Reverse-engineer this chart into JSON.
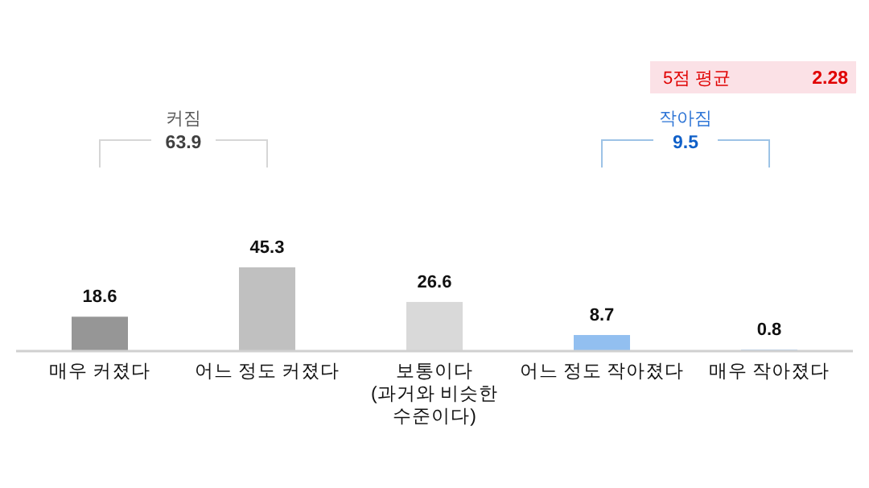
{
  "chart_data": {
    "type": "bar",
    "categories": [
      "매우 커졌다",
      "어느 정도 커졌다",
      "보통이다\n(과거와 비슷한\n수준이다)",
      "어느 정도 작아졌다",
      "매우 작아졌다"
    ],
    "values": [
      18.6,
      45.3,
      26.6,
      8.7,
      0.8
    ],
    "colors": [
      "#969696",
      "#c0c0c0",
      "#d9d9d9",
      "#92bff0",
      "#a9cdf0"
    ],
    "data_labels": true,
    "annotations": [
      "커짐",
      "63.9",
      "작아짐",
      "9.5",
      "5점 평균",
      "2.28"
    ]
  }
}
